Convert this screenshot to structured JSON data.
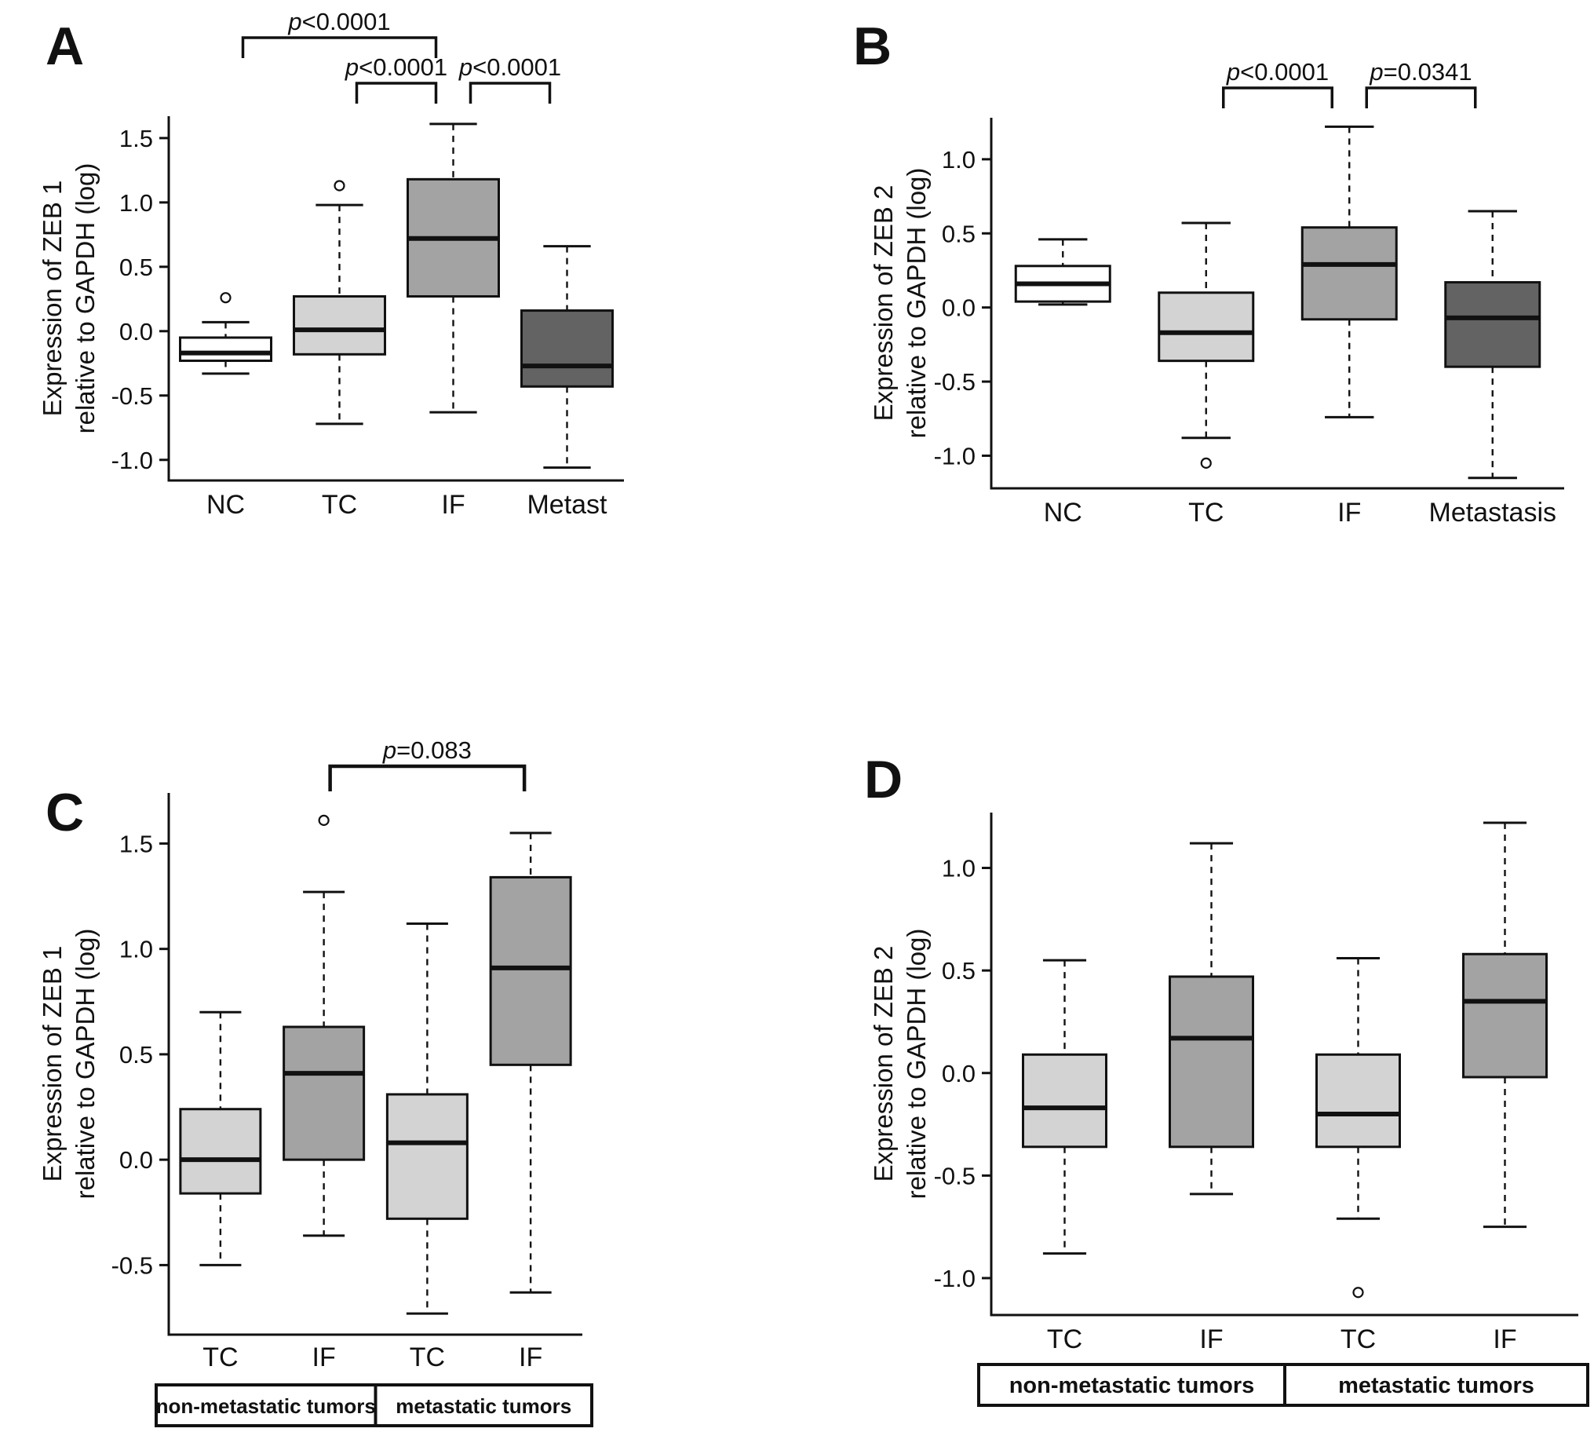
{
  "colors": {
    "ink": "#111111",
    "nc_fill": "#ffffff",
    "tc_fill": "#d3d3d3",
    "if_fill": "#a3a3a3",
    "metastasis_fill": "#636363"
  },
  "chart_data": [
    {
      "type": "boxplot",
      "panel": "A",
      "title": "",
      "ylabel": [
        "Expression of ZEB 1",
        "relative to GAPDH (log)"
      ],
      "categories": [
        "NC",
        "TC",
        "IF",
        "Metast"
      ],
      "yticks": [
        1.5,
        1.0,
        0.5,
        0.0,
        -0.5,
        -1.0
      ],
      "ylim": [
        -1.16,
        1.67
      ],
      "grid": false,
      "boxes": [
        {
          "category": "NC",
          "fill": "#ffffff",
          "whisker_low": -0.33,
          "q1": -0.23,
          "median": -0.17,
          "q3": -0.05,
          "whisker_high": 0.07,
          "outliers": [
            0.26
          ]
        },
        {
          "category": "TC",
          "fill": "#d3d3d3",
          "whisker_low": -0.72,
          "q1": -0.18,
          "median": 0.01,
          "q3": 0.27,
          "whisker_high": 0.98,
          "outliers": [
            1.13
          ]
        },
        {
          "category": "IF",
          "fill": "#a3a3a3",
          "whisker_low": -0.63,
          "q1": 0.27,
          "median": 0.72,
          "q3": 1.18,
          "whisker_high": 1.61,
          "outliers": []
        },
        {
          "category": "Metast",
          "fill": "#636363",
          "whisker_low": -1.06,
          "q1": -0.43,
          "median": -0.27,
          "q3": 0.16,
          "whisker_high": 0.66,
          "outliers": []
        }
      ],
      "significance_brackets": [
        {
          "from": 0,
          "to": 2,
          "label": "p<0.0001",
          "level": 2
        },
        {
          "from": 1,
          "to": 2,
          "label": "p<0.0001",
          "level": 1
        },
        {
          "from": 2,
          "to": 3,
          "label": "p<0.0001",
          "level": 1
        }
      ],
      "group_labels": []
    },
    {
      "type": "boxplot",
      "panel": "B",
      "title": "",
      "ylabel": [
        "Expression of ZEB 2",
        "relative to GAPDH (log)"
      ],
      "categories": [
        "NC",
        "TC",
        "IF",
        "Metastasis"
      ],
      "yticks": [
        1.0,
        0.5,
        0.0,
        -0.5,
        -1.0
      ],
      "ylim": [
        -1.22,
        1.28
      ],
      "grid": false,
      "boxes": [
        {
          "category": "NC",
          "fill": "#ffffff",
          "whisker_low": 0.02,
          "q1": 0.04,
          "median": 0.16,
          "q3": 0.28,
          "whisker_high": 0.46,
          "outliers": []
        },
        {
          "category": "TC",
          "fill": "#d3d3d3",
          "whisker_low": -0.88,
          "q1": -0.36,
          "median": -0.17,
          "q3": 0.1,
          "whisker_high": 0.57,
          "outliers": [
            -1.05
          ]
        },
        {
          "category": "IF",
          "fill": "#a3a3a3",
          "whisker_low": -0.74,
          "q1": -0.08,
          "median": 0.29,
          "q3": 0.54,
          "whisker_high": 1.22,
          "outliers": []
        },
        {
          "category": "Metastasis",
          "fill": "#636363",
          "whisker_low": -1.15,
          "q1": -0.4,
          "median": -0.07,
          "q3": 0.17,
          "whisker_high": 0.65,
          "outliers": []
        }
      ],
      "significance_brackets": [
        {
          "from": 1,
          "to": 2,
          "label": "p<0.0001",
          "level": 1
        },
        {
          "from": 2,
          "to": 3,
          "label": "p=0.0341",
          "level": 1
        }
      ],
      "group_labels": []
    },
    {
      "type": "boxplot",
      "panel": "C",
      "title": "",
      "ylabel": [
        "Expression of ZEB 1",
        "relative to GAPDH (log)"
      ],
      "categories": [
        "TC",
        "IF",
        "TC",
        "IF"
      ],
      "yticks": [
        1.5,
        1.0,
        0.5,
        0.0,
        -0.5
      ],
      "ylim": [
        -0.83,
        1.74
      ],
      "grid": false,
      "boxes": [
        {
          "category": "TC",
          "fill": "#d3d3d3",
          "whisker_low": -0.5,
          "q1": -0.16,
          "median": 0.0,
          "q3": 0.24,
          "whisker_high": 0.7,
          "outliers": []
        },
        {
          "category": "IF",
          "fill": "#a3a3a3",
          "whisker_low": -0.36,
          "q1": 0.0,
          "median": 0.41,
          "q3": 0.63,
          "whisker_high": 1.27,
          "outliers": [
            1.61
          ]
        },
        {
          "category": "TC",
          "fill": "#d3d3d3",
          "whisker_low": -0.73,
          "q1": -0.28,
          "median": 0.08,
          "q3": 0.31,
          "whisker_high": 1.12,
          "outliers": []
        },
        {
          "category": "IF",
          "fill": "#a3a3a3",
          "whisker_low": -0.63,
          "q1": 0.45,
          "median": 0.91,
          "q3": 1.34,
          "whisker_high": 1.55,
          "outliers": []
        }
      ],
      "significance_brackets": [
        {
          "from": 1,
          "to": 3,
          "label": "p=0.083",
          "level": 1
        }
      ],
      "group_labels": [
        {
          "label": "non-metastatic tumors",
          "span": [
            0,
            1
          ]
        },
        {
          "label": "metastatic tumors",
          "span": [
            2,
            3
          ]
        }
      ]
    },
    {
      "type": "boxplot",
      "panel": "D",
      "title": "",
      "ylabel": [
        "Expression of ZEB 2",
        "relative to GAPDH (log)"
      ],
      "categories": [
        "TC",
        "IF",
        "TC",
        "IF"
      ],
      "yticks": [
        1.0,
        0.5,
        0.0,
        -0.5,
        -1.0
      ],
      "ylim": [
        -1.18,
        1.27
      ],
      "grid": false,
      "boxes": [
        {
          "category": "TC",
          "fill": "#d3d3d3",
          "whisker_low": -0.88,
          "q1": -0.36,
          "median": -0.17,
          "q3": 0.09,
          "whisker_high": 0.55,
          "outliers": []
        },
        {
          "category": "IF",
          "fill": "#a3a3a3",
          "whisker_low": -0.59,
          "q1": -0.36,
          "median": 0.17,
          "q3": 0.47,
          "whisker_high": 1.12,
          "outliers": []
        },
        {
          "category": "TC",
          "fill": "#d3d3d3",
          "whisker_low": -0.71,
          "q1": -0.36,
          "median": -0.2,
          "q3": 0.09,
          "whisker_high": 0.56,
          "outliers": [
            -1.07
          ]
        },
        {
          "category": "IF",
          "fill": "#a3a3a3",
          "whisker_low": -0.75,
          "q1": -0.02,
          "median": 0.35,
          "q3": 0.58,
          "whisker_high": 1.22,
          "outliers": []
        }
      ],
      "significance_brackets": [],
      "group_labels": [
        {
          "label": "non-metastatic tumors",
          "span": [
            0,
            1
          ]
        },
        {
          "label": "metastatic tumors",
          "span": [
            2,
            3
          ]
        }
      ]
    }
  ]
}
